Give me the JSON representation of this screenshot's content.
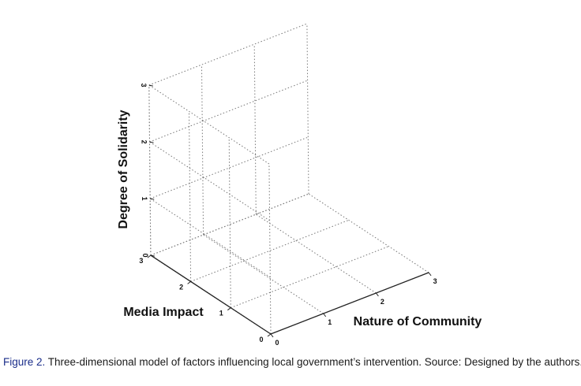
{
  "figure": {
    "axes": {
      "vertical": {
        "label": "Degree of Solidarity",
        "ticks": [
          "0",
          "1",
          "2",
          "3"
        ],
        "range": [
          0,
          3
        ]
      },
      "left_depth": {
        "label": "Media Impact",
        "ticks": [
          "0",
          "1",
          "2",
          "3"
        ],
        "range": [
          0,
          3
        ]
      },
      "right_depth": {
        "label": "Nature of Community",
        "ticks": [
          "0",
          "1",
          "2",
          "3"
        ],
        "range": [
          0,
          3
        ]
      }
    },
    "grid": true
  },
  "caption": {
    "label": "Figure 2.",
    "text": " Three-dimensional model of factors influencing local government’s intervention. Source: Designed by the authors."
  }
}
